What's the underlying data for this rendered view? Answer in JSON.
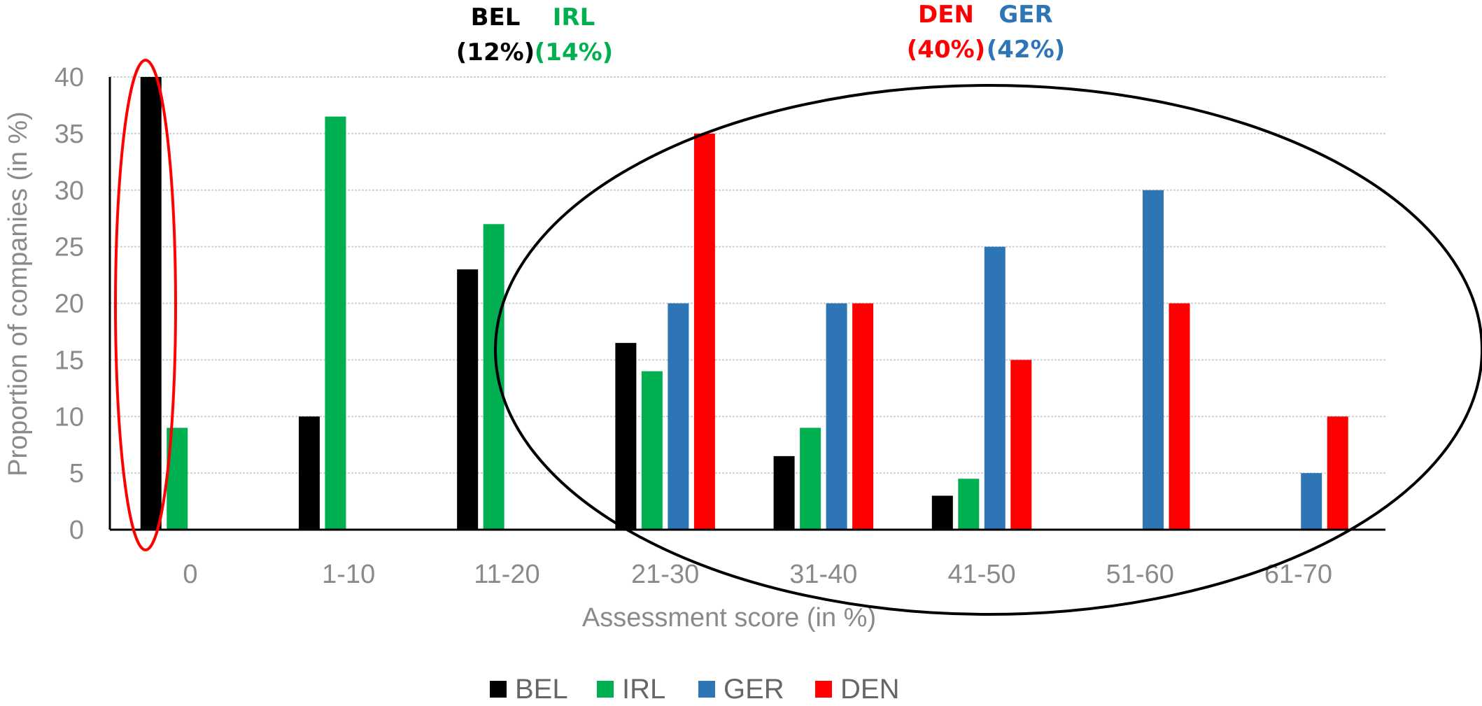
{
  "chart_data": {
    "type": "bar",
    "title": "",
    "xlabel": "Assessment score (in %)",
    "ylabel": "Proportion of companies (in %)",
    "ylim": [
      0,
      40
    ],
    "yticks": [
      "0",
      "5",
      "10",
      "15",
      "20",
      "25",
      "30",
      "35",
      "40"
    ],
    "grid": true,
    "legend_position": "bottom",
    "categories": [
      "0",
      "1-10",
      "11-20",
      "21-30",
      "31-40",
      "41-50",
      "51-60",
      "61-70"
    ],
    "series": [
      {
        "name": "BEL",
        "color": "#000000",
        "values": [
          40,
          10,
          23,
          16.5,
          6.5,
          3,
          0,
          0
        ]
      },
      {
        "name": "IRL",
        "color": "#00b050",
        "values": [
          9,
          36.5,
          27,
          14,
          9,
          4.5,
          0,
          0
        ]
      },
      {
        "name": "GER",
        "color": "#2e75b6",
        "values": [
          0,
          0,
          0,
          20,
          20,
          25,
          30,
          5
        ]
      },
      {
        "name": "DEN",
        "color": "#ff0000",
        "values": [
          0,
          0,
          0,
          35,
          20,
          15,
          20,
          10
        ]
      }
    ],
    "annotations": [
      {
        "country": "BEL",
        "share": "(12%)",
        "color": "#000000"
      },
      {
        "country": "IRL",
        "share": "(14%)",
        "color": "#00b050"
      },
      {
        "country": "DEN",
        "share": "(40%)",
        "color": "#ff0000"
      },
      {
        "country": "GER",
        "share": "(42%)",
        "color": "#2e75b6"
      }
    ]
  }
}
